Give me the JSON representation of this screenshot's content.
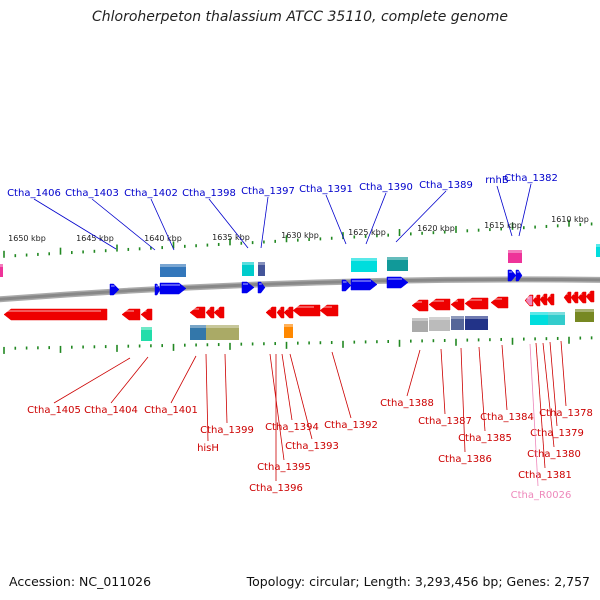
{
  "title": "Chloroherpeton thalassium ATCC 35110, complete genome",
  "accession": "Accession: NC_011026",
  "summary": "Topology: circular; Length: 3,293,456 bp; Genes: 2,757",
  "colors": {
    "forward_label": "#0000cc",
    "reverse_label": "#cc0000",
    "rna_label": "#ee88bb",
    "backbone": "#888888",
    "tick": "#228822"
  },
  "scale_ticks": [
    "1650 kbp",
    "1645 kbp",
    "1640 kbp",
    "1635 kbp",
    "1630 kbp",
    "1625 kbp",
    "1620 kbp",
    "1615 kbp",
    "1610 kbp"
  ],
  "forward_labels": [
    "Ctha_1406",
    "Ctha_1403",
    "Ctha_1402",
    "Ctha_1398",
    "Ctha_1397",
    "Ctha_1391",
    "Ctha_1390",
    "Ctha_1389",
    "rnhB",
    "Ctha_1382"
  ],
  "reverse_labels": [
    "Ctha_1405",
    "Ctha_1404",
    "Ctha_1401",
    "Ctha_1399",
    "hisH",
    "Ctha_1394",
    "Ctha_1395",
    "Ctha_1396",
    "Ctha_1393",
    "Ctha_1392",
    "Ctha_1388",
    "Ctha_1387",
    "Ctha_1386",
    "Ctha_1385",
    "Ctha_1384",
    "Ctha_1381",
    "Ctha_1380",
    "Ctha_1379",
    "Ctha_1378"
  ],
  "rna_labels": [
    "Ctha_R0026"
  ]
}
